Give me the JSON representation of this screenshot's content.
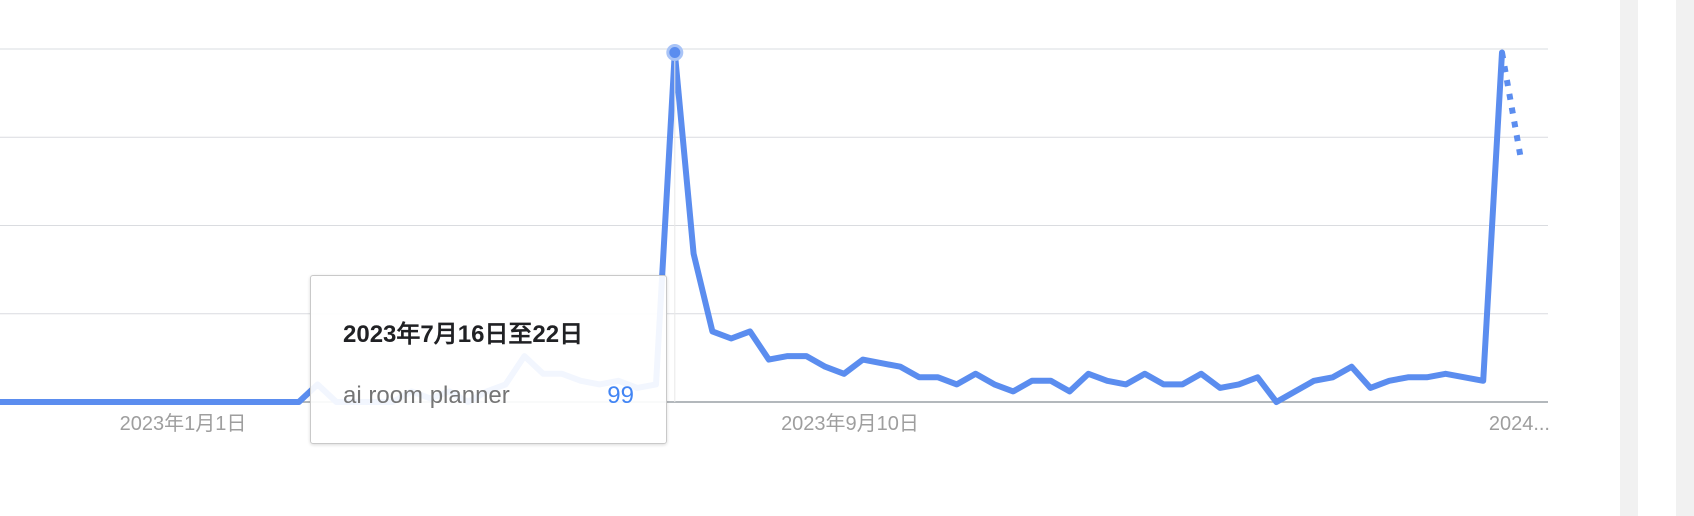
{
  "chart_data": {
    "type": "line",
    "series": [
      {
        "name": "ai room planner",
        "color": "#5b8def",
        "values": [
          0,
          0,
          0,
          0,
          0,
          0,
          0,
          0,
          0,
          0,
          0,
          0,
          0,
          0,
          0,
          0,
          0,
          5,
          0,
          0,
          0,
          0,
          3,
          1,
          3,
          0,
          3,
          5,
          13,
          8,
          8,
          6,
          5,
          6,
          4,
          5,
          99,
          42,
          20,
          18,
          20,
          12,
          13,
          13,
          10,
          8,
          12,
          11,
          10,
          7,
          7,
          5,
          8,
          5,
          3,
          6,
          6,
          3,
          8,
          6,
          5,
          8,
          5,
          5,
          8,
          4,
          5,
          7,
          0,
          3,
          6,
          7,
          10,
          4,
          6,
          7,
          7,
          8,
          7,
          6,
          99,
          69
        ],
        "partial_from_index": 80
      }
    ],
    "x_tick_labels": [
      "2023年1月1日",
      "2023年9月10日",
      "2024..."
    ],
    "ylim": [
      0,
      100
    ],
    "grid": true,
    "highlight_index": 36
  },
  "tooltip": {
    "date": "2023年7月16日至22日",
    "term": "ai room planner",
    "value": "99"
  }
}
